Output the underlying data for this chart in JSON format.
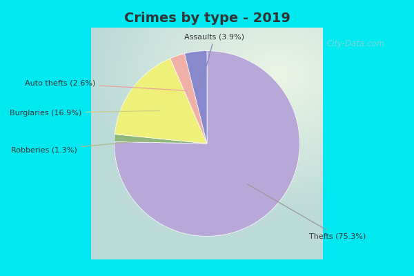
{
  "title": "Crimes by type - 2019",
  "labels": [
    "Thefts (75.3%)",
    "Robberies (1.3%)",
    "Burglaries (16.9%)",
    "Auto thefts (2.6%)",
    "Assaults (3.9%)"
  ],
  "values": [
    75.3,
    1.3,
    16.9,
    2.6,
    3.9
  ],
  "colors": [
    "#b8a8d8",
    "#8db87a",
    "#eef07a",
    "#f0b0a8",
    "#8888cc"
  ],
  "background_cyan": "#00e8f0",
  "title_color": "#333333",
  "title_fontsize": 14,
  "watermark": "City-Data.com",
  "startangle": 90,
  "label_fontsize": 8,
  "label_color": "#333333"
}
